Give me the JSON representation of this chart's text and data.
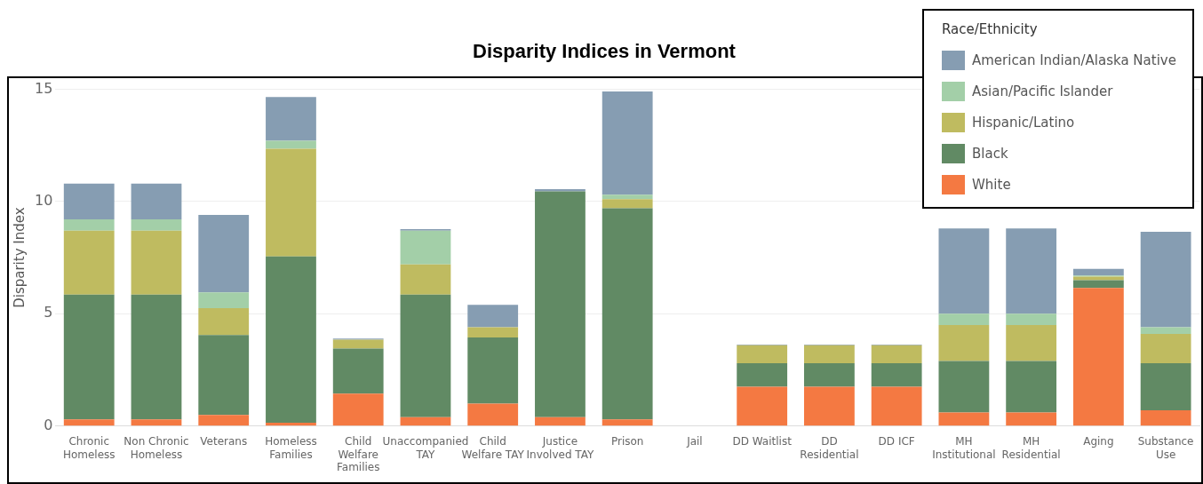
{
  "chart_data": {
    "type": "bar",
    "title": "Disparity Indices in Vermont",
    "ylabel": "Disparity Index",
    "legend_title": "Race/Ethnicity",
    "legend": "top right",
    "stacked": true,
    "grid": "y",
    "categories": [
      "Chronic Homeless",
      "Non Chronic Homeless",
      "Veterans",
      "Homeless Families",
      "Child Welfare Families",
      "Unaccompanied TAY",
      "Child Welfare TAY",
      "Justice Involved TAY",
      "Prison",
      "Jail",
      "DD Waitlist",
      "DD Residential",
      "DD ICF",
      "MH Institutional",
      "MH Residential",
      "Aging",
      "Substance Use"
    ],
    "ylim": [
      0,
      15
    ],
    "yticks": [
      0,
      5,
      10,
      15
    ],
    "series": [
      {
        "name": "White",
        "color": "#f47942",
        "values": [
          0.3,
          0.3,
          0.5,
          0.15,
          1.45,
          0.4,
          1.0,
          0.4,
          0.3,
          null,
          1.75,
          1.75,
          1.75,
          0.6,
          0.6,
          6.15,
          0.7
        ]
      },
      {
        "name": "Black",
        "color": "#618a64",
        "values": [
          5.55,
          5.55,
          3.55,
          7.4,
          2.0,
          5.45,
          2.95,
          10.05,
          9.4,
          null,
          1.05,
          1.05,
          1.05,
          2.3,
          2.3,
          0.35,
          2.1
        ]
      },
      {
        "name": "Hispanic/Latino",
        "color": "#bfbb60",
        "values": [
          2.85,
          2.85,
          1.2,
          4.8,
          0.4,
          1.35,
          0.45,
          0,
          0.4,
          null,
          0.8,
          0.8,
          0.8,
          1.6,
          1.6,
          0.15,
          1.3
        ]
      },
      {
        "name": "Asian/Pacific Islander",
        "color": "#a3cfa8",
        "values": [
          0.5,
          0.5,
          0.7,
          0.35,
          0,
          1.5,
          0,
          0,
          0.2,
          null,
          0,
          0,
          0,
          0.5,
          0.5,
          0.05,
          0.3
        ]
      },
      {
        "name": "American Indian/Alaska Native",
        "color": "#869db2",
        "values": [
          1.6,
          1.6,
          3.45,
          1.95,
          0.05,
          0.07,
          1.0,
          0.1,
          4.6,
          null,
          0.03,
          0.03,
          0.03,
          3.8,
          3.8,
          0.3,
          4.25
        ]
      }
    ]
  }
}
